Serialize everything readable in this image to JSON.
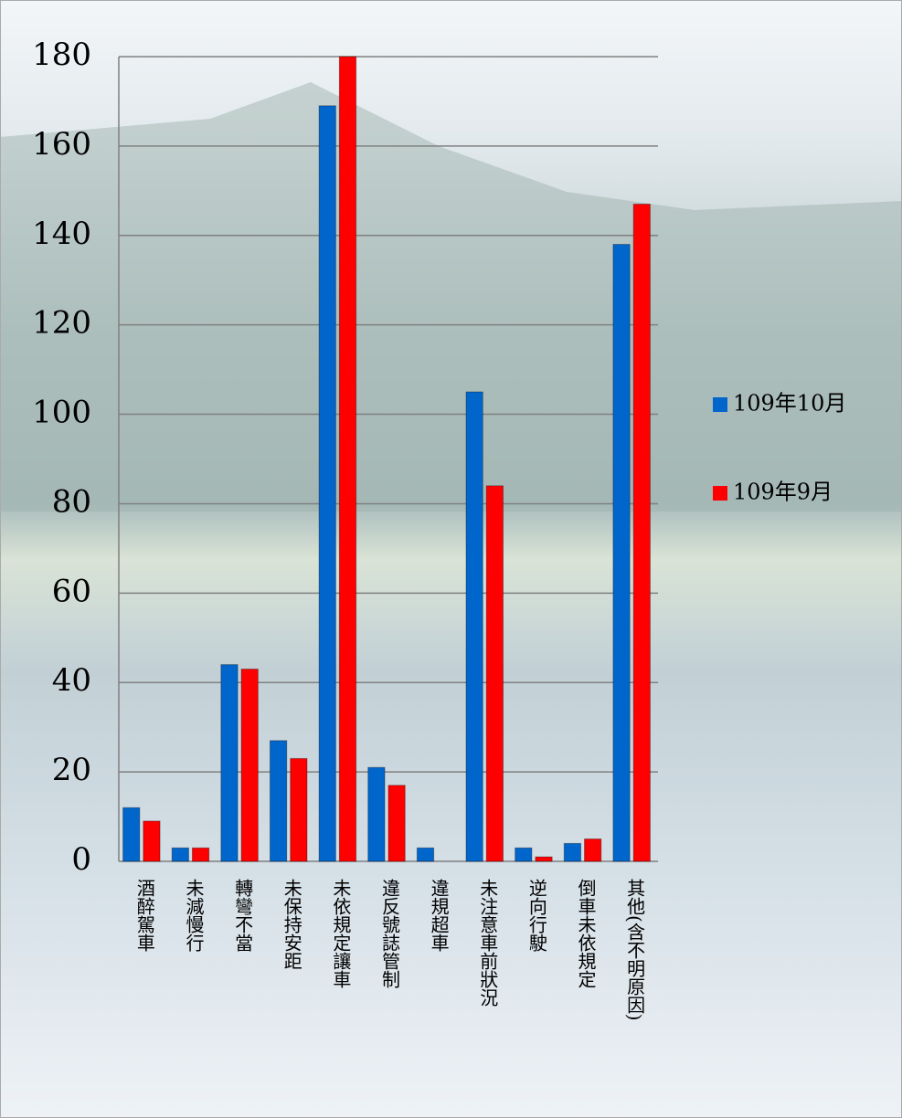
{
  "chart_data": {
    "type": "bar",
    "categories": [
      "酒醉駕車",
      "未減慢行",
      "轉彎不當",
      "未保持安距",
      "未依規定讓車",
      "違反號誌管制",
      "違規超車",
      "未注意車前狀況",
      "逆向行駛",
      "倒車未依規定",
      "其他(含不明原因)"
    ],
    "series": [
      {
        "name": "109年10月",
        "color": "#0066cc",
        "values": [
          12,
          3,
          44,
          27,
          169,
          21,
          3,
          105,
          3,
          4,
          138
        ]
      },
      {
        "name": "109年9月",
        "color": "#ff0000",
        "values": [
          9,
          3,
          43,
          23,
          180,
          17,
          0,
          84,
          1,
          5,
          147
        ]
      }
    ],
    "ylim": [
      0,
      180
    ],
    "yticks": [
      0,
      20,
      40,
      60,
      80,
      100,
      120,
      140,
      160,
      180
    ],
    "grid": true,
    "legend": "right"
  }
}
